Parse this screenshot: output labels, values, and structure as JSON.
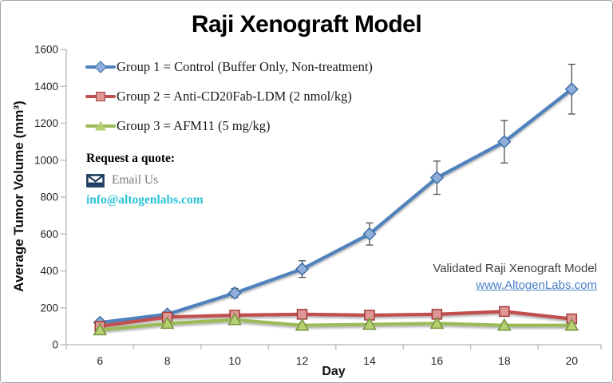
{
  "title": "Raji Xenograft Model",
  "quote": {
    "heading": "Request a quote:",
    "email_label": "Email Us",
    "email_address": "info@altogenlabs.com",
    "email_color": "#2cc2d6",
    "icon_color": "#1d3a5f"
  },
  "watermark": {
    "text": "Validated Raji Xenograft Model",
    "link": "www.AltogenLabs.com",
    "link_color": "#4a80c8"
  },
  "chart_data": {
    "type": "line",
    "title": "Raji Xenograft Model",
    "xlabel": "Day",
    "ylabel": "Average Tumor Volume (mm³)",
    "x": [
      6,
      8,
      10,
      12,
      14,
      16,
      18,
      20
    ],
    "series": [
      {
        "name": "Group 1 = Control (Buffer Only, Non-treatment)",
        "color": "#4F81BD",
        "marker": "diamond",
        "marker_fill": "#8FAEDC",
        "marker_stroke": "#3D6DA3",
        "values": [
          120,
          165,
          280,
          410,
          600,
          905,
          1100,
          1385
        ],
        "error": [
          15,
          15,
          25,
          45,
          60,
          90,
          115,
          135
        ]
      },
      {
        "name": "Group 2 = Anti-CD20Fab-LDM (2 nmol/kg)",
        "color": "#C0504D",
        "marker": "square",
        "marker_fill": "#E09694",
        "marker_stroke": "#9E3B38",
        "values": [
          100,
          150,
          160,
          165,
          160,
          165,
          180,
          140
        ]
      },
      {
        "name": "Group 3 = AFM11 (5 mg/kg)",
        "color": "#9BBB59",
        "marker": "triangle",
        "marker_fill": "#B5D06E",
        "marker_stroke": "#74923F",
        "values": [
          80,
          115,
          135,
          105,
          110,
          115,
          105,
          105
        ]
      }
    ],
    "xlim": [
      5,
      20.87
    ],
    "ylim": [
      0,
      1600
    ],
    "xticks": [
      6,
      8,
      10,
      12,
      14,
      16,
      18,
      20
    ],
    "yticks": [
      0,
      200,
      400,
      600,
      800,
      1000,
      1200,
      1400,
      1600
    ],
    "grid": false,
    "legend_position": "top-left-inside",
    "axis_color": "#BFBFBF",
    "tick_label_color": "#262626",
    "error_color": "#4D4D4D"
  }
}
